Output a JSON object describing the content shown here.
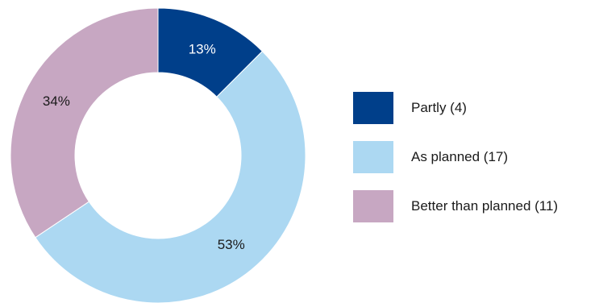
{
  "chart_data": {
    "type": "pie",
    "style": "donut",
    "start_angle": "top (12 o'clock), clockwise",
    "slices": [
      {
        "label": "Partly (4)",
        "count": 4,
        "percent": 13,
        "percent_label": "13%",
        "color": "#003f8a",
        "label_color": "#ffffff"
      },
      {
        "label": "As planned (17)",
        "count": 17,
        "percent": 53,
        "percent_label": "53%",
        "color": "#acd8f2",
        "label_color": "#1a1a1a"
      },
      {
        "label": "Better than planned (11)",
        "count": 11,
        "percent": 34,
        "percent_label": "34%",
        "color": "#c7a7c2",
        "label_color": "#1a1a1a"
      }
    ],
    "legend_position": "right"
  }
}
